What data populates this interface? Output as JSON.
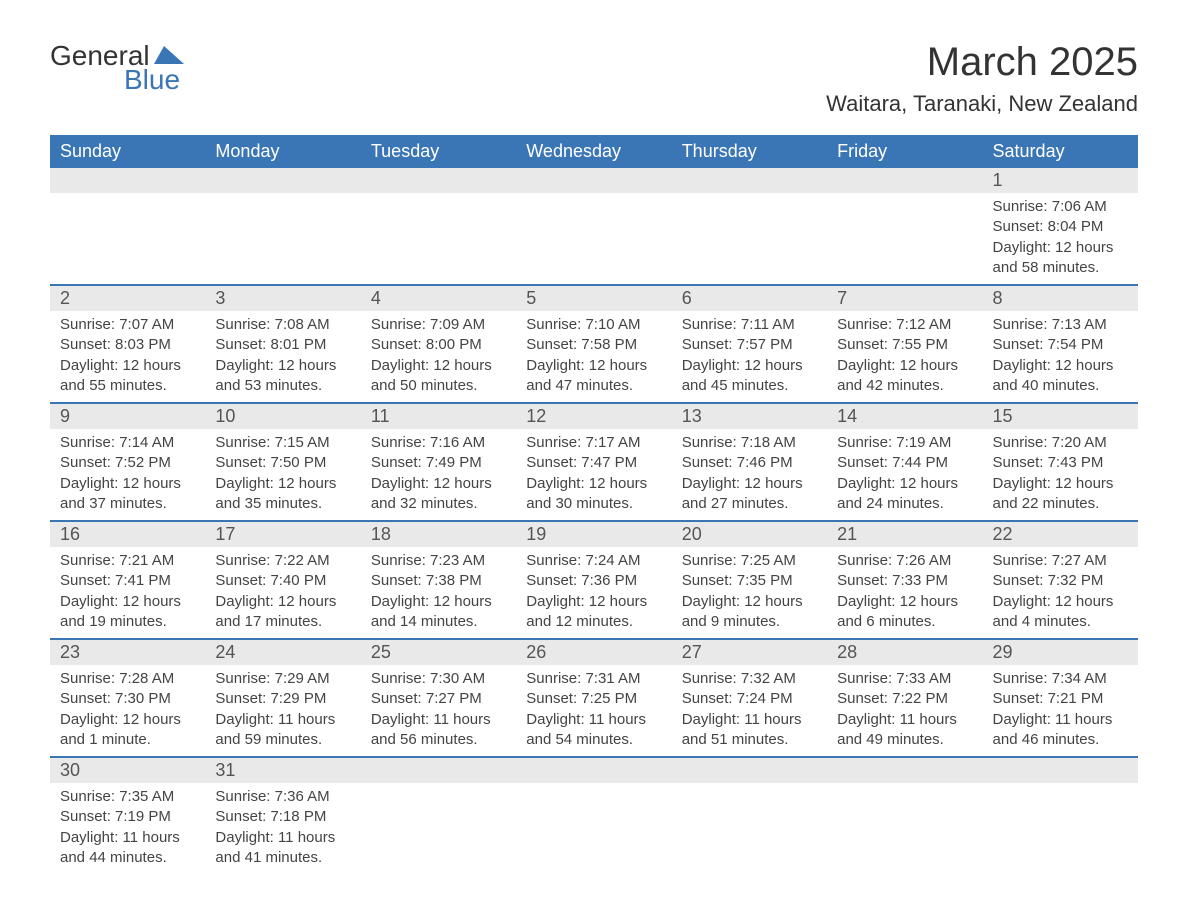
{
  "logo": {
    "general": "General",
    "blue": "Blue",
    "shape_color": "#3a76b5"
  },
  "title": "March 2025",
  "location": "Waitara, Taranaki, New Zealand",
  "colors": {
    "header_bg": "#3a76b5",
    "header_text": "#ffffff",
    "daynum_bg": "#e9e9e9",
    "text": "#444444",
    "row_border": "#3a76b5",
    "background": "#ffffff"
  },
  "weekdays": [
    "Sunday",
    "Monday",
    "Tuesday",
    "Wednesday",
    "Thursday",
    "Friday",
    "Saturday"
  ],
  "first_weekday_index": 6,
  "days": [
    {
      "n": 1,
      "sunrise": "7:06 AM",
      "sunset": "8:04 PM",
      "daylight": "12 hours and 58 minutes."
    },
    {
      "n": 2,
      "sunrise": "7:07 AM",
      "sunset": "8:03 PM",
      "daylight": "12 hours and 55 minutes."
    },
    {
      "n": 3,
      "sunrise": "7:08 AM",
      "sunset": "8:01 PM",
      "daylight": "12 hours and 53 minutes."
    },
    {
      "n": 4,
      "sunrise": "7:09 AM",
      "sunset": "8:00 PM",
      "daylight": "12 hours and 50 minutes."
    },
    {
      "n": 5,
      "sunrise": "7:10 AM",
      "sunset": "7:58 PM",
      "daylight": "12 hours and 47 minutes."
    },
    {
      "n": 6,
      "sunrise": "7:11 AM",
      "sunset": "7:57 PM",
      "daylight": "12 hours and 45 minutes."
    },
    {
      "n": 7,
      "sunrise": "7:12 AM",
      "sunset": "7:55 PM",
      "daylight": "12 hours and 42 minutes."
    },
    {
      "n": 8,
      "sunrise": "7:13 AM",
      "sunset": "7:54 PM",
      "daylight": "12 hours and 40 minutes."
    },
    {
      "n": 9,
      "sunrise": "7:14 AM",
      "sunset": "7:52 PM",
      "daylight": "12 hours and 37 minutes."
    },
    {
      "n": 10,
      "sunrise": "7:15 AM",
      "sunset": "7:50 PM",
      "daylight": "12 hours and 35 minutes."
    },
    {
      "n": 11,
      "sunrise": "7:16 AM",
      "sunset": "7:49 PM",
      "daylight": "12 hours and 32 minutes."
    },
    {
      "n": 12,
      "sunrise": "7:17 AM",
      "sunset": "7:47 PM",
      "daylight": "12 hours and 30 minutes."
    },
    {
      "n": 13,
      "sunrise": "7:18 AM",
      "sunset": "7:46 PM",
      "daylight": "12 hours and 27 minutes."
    },
    {
      "n": 14,
      "sunrise": "7:19 AM",
      "sunset": "7:44 PM",
      "daylight": "12 hours and 24 minutes."
    },
    {
      "n": 15,
      "sunrise": "7:20 AM",
      "sunset": "7:43 PM",
      "daylight": "12 hours and 22 minutes."
    },
    {
      "n": 16,
      "sunrise": "7:21 AM",
      "sunset": "7:41 PM",
      "daylight": "12 hours and 19 minutes."
    },
    {
      "n": 17,
      "sunrise": "7:22 AM",
      "sunset": "7:40 PM",
      "daylight": "12 hours and 17 minutes."
    },
    {
      "n": 18,
      "sunrise": "7:23 AM",
      "sunset": "7:38 PM",
      "daylight": "12 hours and 14 minutes."
    },
    {
      "n": 19,
      "sunrise": "7:24 AM",
      "sunset": "7:36 PM",
      "daylight": "12 hours and 12 minutes."
    },
    {
      "n": 20,
      "sunrise": "7:25 AM",
      "sunset": "7:35 PM",
      "daylight": "12 hours and 9 minutes."
    },
    {
      "n": 21,
      "sunrise": "7:26 AM",
      "sunset": "7:33 PM",
      "daylight": "12 hours and 6 minutes."
    },
    {
      "n": 22,
      "sunrise": "7:27 AM",
      "sunset": "7:32 PM",
      "daylight": "12 hours and 4 minutes."
    },
    {
      "n": 23,
      "sunrise": "7:28 AM",
      "sunset": "7:30 PM",
      "daylight": "12 hours and 1 minute."
    },
    {
      "n": 24,
      "sunrise": "7:29 AM",
      "sunset": "7:29 PM",
      "daylight": "11 hours and 59 minutes."
    },
    {
      "n": 25,
      "sunrise": "7:30 AM",
      "sunset": "7:27 PM",
      "daylight": "11 hours and 56 minutes."
    },
    {
      "n": 26,
      "sunrise": "7:31 AM",
      "sunset": "7:25 PM",
      "daylight": "11 hours and 54 minutes."
    },
    {
      "n": 27,
      "sunrise": "7:32 AM",
      "sunset": "7:24 PM",
      "daylight": "11 hours and 51 minutes."
    },
    {
      "n": 28,
      "sunrise": "7:33 AM",
      "sunset": "7:22 PM",
      "daylight": "11 hours and 49 minutes."
    },
    {
      "n": 29,
      "sunrise": "7:34 AM",
      "sunset": "7:21 PM",
      "daylight": "11 hours and 46 minutes."
    },
    {
      "n": 30,
      "sunrise": "7:35 AM",
      "sunset": "7:19 PM",
      "daylight": "11 hours and 44 minutes."
    },
    {
      "n": 31,
      "sunrise": "7:36 AM",
      "sunset": "7:18 PM",
      "daylight": "11 hours and 41 minutes."
    }
  ],
  "labels": {
    "sunrise": "Sunrise:",
    "sunset": "Sunset:",
    "daylight": "Daylight:"
  }
}
